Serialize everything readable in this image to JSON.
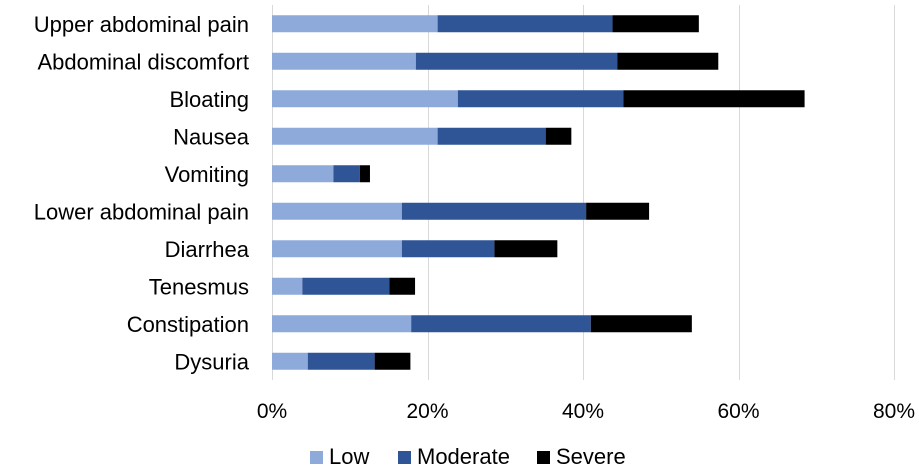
{
  "chart_data": {
    "type": "bar",
    "orientation": "horizontal",
    "stacked": true,
    "categories": [
      "Upper abdominal pain",
      "Abdominal discomfort",
      "Bloating",
      "Nausea",
      "Vomiting",
      "Lower abdominal pain",
      "Diarrhea",
      "Tenesmus",
      "Constipation",
      "Dysuria"
    ],
    "series": [
      {
        "name": "Low",
        "color": "#8eaadb",
        "values": [
          21.3,
          18.5,
          23.9,
          21.3,
          7.9,
          16.7,
          16.7,
          3.9,
          17.9,
          4.6
        ]
      },
      {
        "name": "Moderate",
        "color": "#2f5597",
        "values": [
          22.5,
          25.9,
          21.3,
          13.9,
          3.4,
          23.7,
          11.9,
          11.2,
          23.1,
          8.6
        ]
      },
      {
        "name": "Severe",
        "color": "#000000",
        "values": [
          11.1,
          13.0,
          23.3,
          3.3,
          1.3,
          8.1,
          8.1,
          3.3,
          13.0,
          4.6
        ]
      }
    ],
    "x_ticks": [
      "0%",
      "20%",
      "40%",
      "60%",
      "80%"
    ],
    "xlim": [
      0,
      80
    ],
    "grid": true,
    "legend": "bottom",
    "title": "",
    "xlabel": "",
    "ylabel": ""
  }
}
